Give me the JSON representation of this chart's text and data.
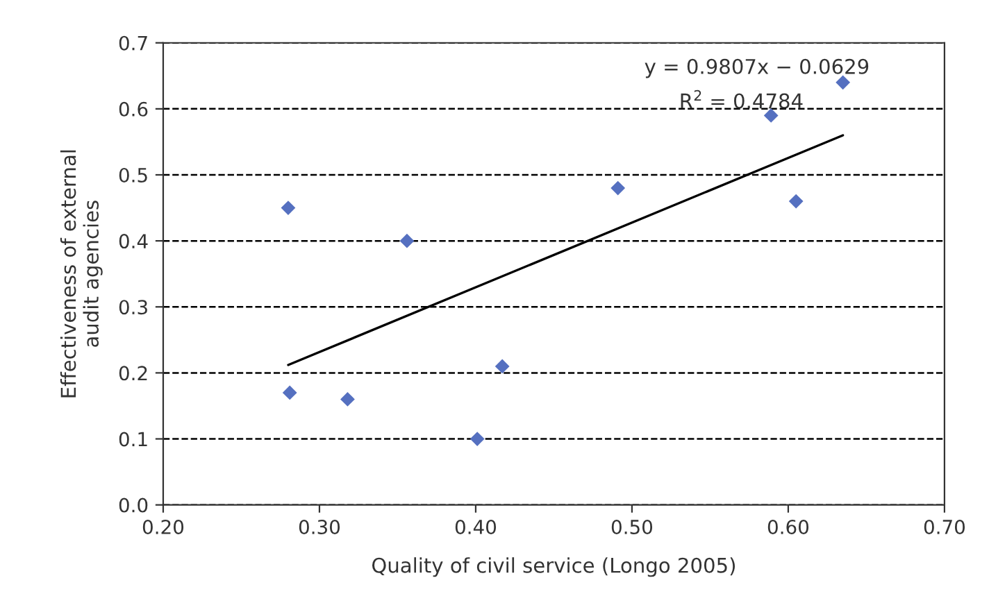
{
  "chart_data": {
    "type": "scatter",
    "xlabel": "Quality of civil service (Longo 2005)",
    "ylabel": "Effectiveness of external\naudit agencies",
    "series": [
      {
        "color": "#5570c0",
        "marker": "diamond",
        "x": [
          0.28,
          0.281,
          0.318,
          0.356,
          0.401,
          0.417,
          0.491,
          0.589,
          0.605,
          0.635
        ],
        "values": [
          0.45,
          0.17,
          0.16,
          0.4,
          0.1,
          0.21,
          0.48,
          0.59,
          0.46,
          0.64
        ]
      },
      {
        "type": "line",
        "color": "#000000",
        "line_style": "solid",
        "x": [
          0.28,
          0.635
        ],
        "values": [
          0.212,
          0.56
        ]
      }
    ],
    "annotations": [
      "y = 0.9807x − 0.0629",
      "R$^{2}$ = 0.4784"
    ],
    "xlim": [
      0.2,
      0.7
    ],
    "xticks": [
      {
        "value": 0.2,
        "label": "0.20"
      },
      {
        "value": 0.3,
        "label": "0.30"
      },
      {
        "value": 0.4,
        "label": "0.40"
      },
      {
        "value": 0.5,
        "label": "0.50"
      },
      {
        "value": 0.6,
        "label": "0.60"
      },
      {
        "value": 0.7,
        "label": "0.70"
      }
    ],
    "ylim": [
      0,
      0.7
    ],
    "yticks": [
      {
        "value": 0,
        "label": "0.0"
      },
      {
        "value": 0.1,
        "label": "0.1"
      },
      {
        "value": 0.2,
        "label": "0.2"
      },
      {
        "value": 0.3,
        "label": "0.3"
      },
      {
        "value": 0.4,
        "label": "0.4"
      },
      {
        "value": 0.5,
        "label": "0.5"
      },
      {
        "value": 0.6,
        "label": "0.6"
      },
      {
        "value": 0.7,
        "label": "0.7"
      }
    ],
    "grid": "y",
    "legend": false
  }
}
